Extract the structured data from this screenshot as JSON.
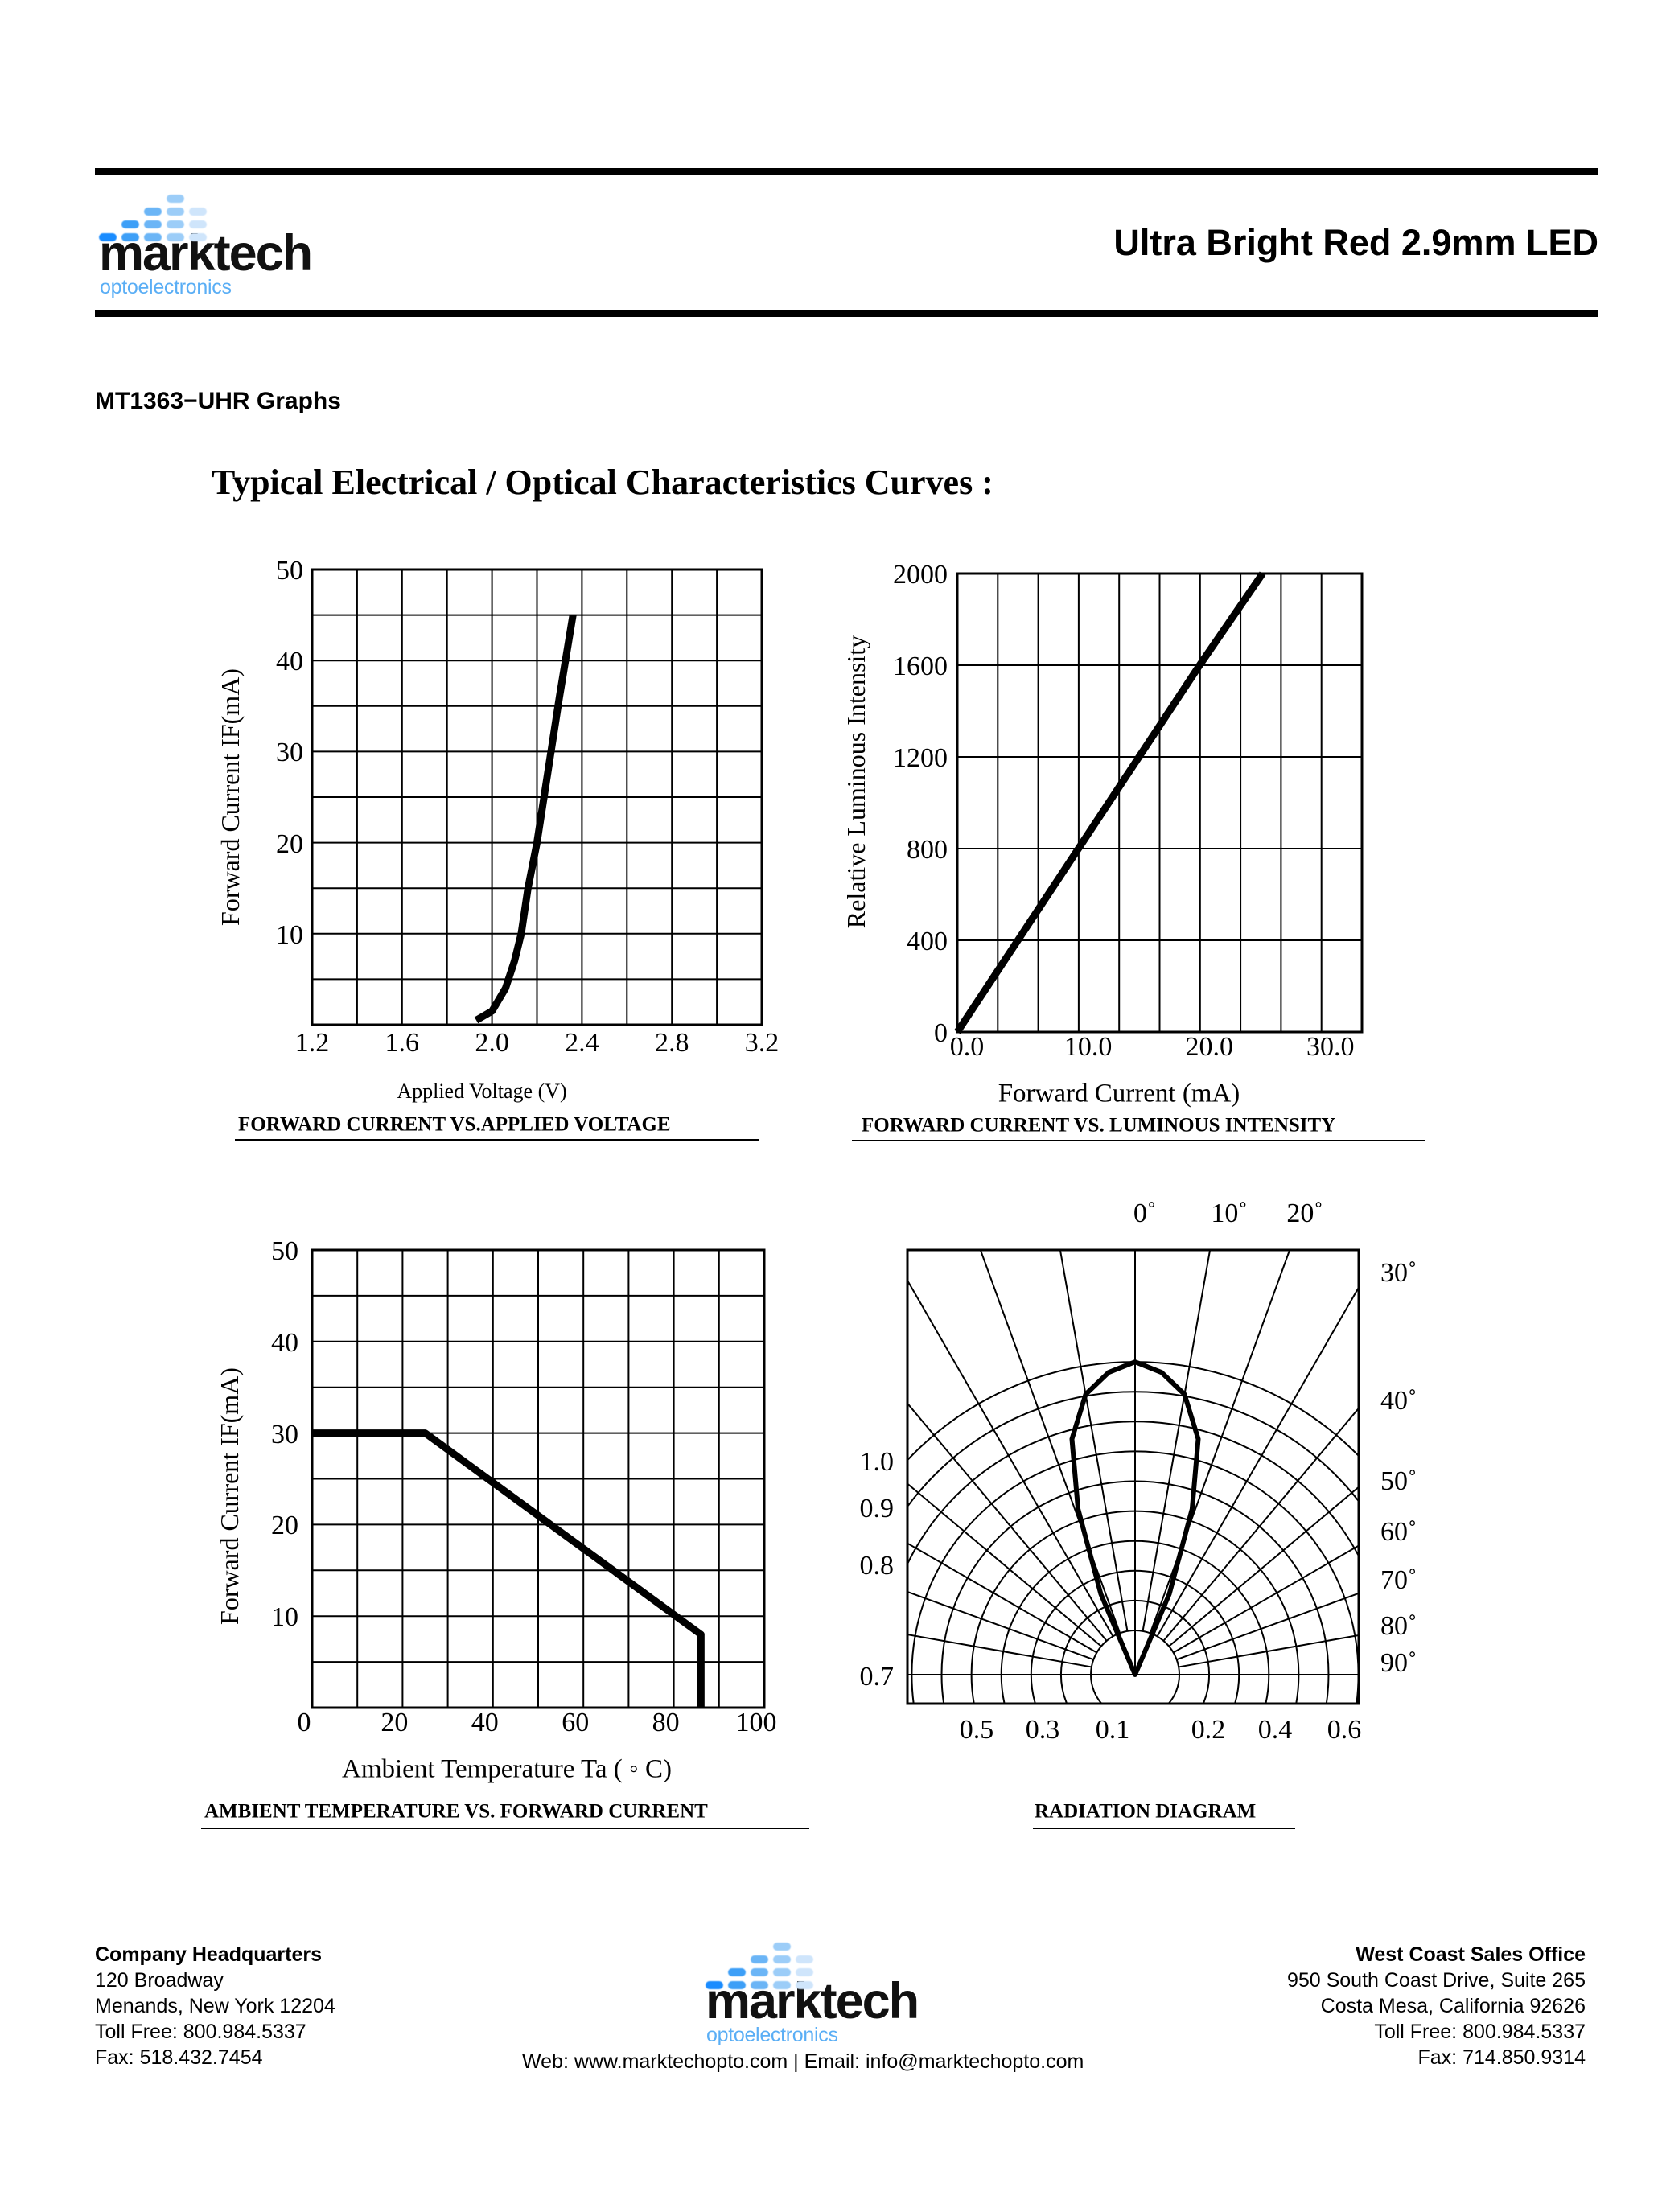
{
  "header": {
    "logo": {
      "word": "marktech",
      "sub": "optoelectronics",
      "dot_colors": [
        "#1a8cff",
        "#3d9ff7",
        "#6bb5f6",
        "#9ccdf8",
        "#cfe5fb"
      ]
    },
    "title": "Ultra Bright Red 2.9mm LED"
  },
  "section_title": "MT1363−UHR Graphs",
  "curves_title": "Typical Electrical / Optical Characteristics Curves :",
  "chart_data": [
    {
      "type": "line",
      "title": "FORWARD CURRENT VS.APPLIED VOLTAGE",
      "xlabel": "Applied Voltage  (V)",
      "ylabel": "Forward Current IF(mA)",
      "xlim": [
        1.2,
        3.2
      ],
      "ylim": [
        0,
        50
      ],
      "xticks": [
        "1.2",
        "1.6",
        "2.0",
        "2.4",
        "2.8",
        "3.2"
      ],
      "yticks": [
        "10",
        "20",
        "30",
        "40",
        "50"
      ],
      "grid": {
        "x_divisions": 10,
        "y_divisions": 10
      },
      "series": [
        {
          "x": [
            1.93,
            2.0,
            2.06,
            2.1,
            2.13,
            2.16,
            2.2,
            2.25,
            2.3,
            2.36
          ],
          "y": [
            0.5,
            1.5,
            4,
            7,
            10,
            15,
            20,
            28,
            36,
            45
          ]
        }
      ]
    },
    {
      "type": "line",
      "title": "FORWARD CURRENT VS. LUMINOUS INTENSITY",
      "xlabel": "Forward Current (mA)",
      "ylabel": "Relative Luminous Intensity",
      "xlim": [
        0,
        33.4
      ],
      "ylim": [
        0,
        2000
      ],
      "xticks": [
        "0.0",
        "10.0",
        "20.0",
        "30.0"
      ],
      "yticks": [
        "0",
        "400",
        "800",
        "1200",
        "1600",
        "2000"
      ],
      "grid": {
        "x_divisions": 10,
        "y_divisions": 5
      },
      "series": [
        {
          "x": [
            0,
            10,
            20,
            25.2
          ],
          "y": [
            0,
            800,
            1600,
            2000
          ]
        }
      ]
    },
    {
      "type": "line",
      "title": "AMBIENT TEMPERATURE  VS. FORWARD CURRENT",
      "xlabel": "Ambient  Temperature  Ta ( ◦ C)",
      "ylabel": "Forward Current IF(mA)",
      "xlim": [
        0,
        100
      ],
      "ylim": [
        0,
        50
      ],
      "xticks": [
        "0",
        "20",
        "40",
        "60",
        "80",
        "100"
      ],
      "yticks": [
        "10",
        "20",
        "30",
        "40",
        "50"
      ],
      "grid": {
        "x_divisions": 10,
        "y_divisions": 10
      },
      "series": [
        {
          "x": [
            0,
            25,
            86,
            86
          ],
          "y": [
            30,
            30,
            8,
            0
          ]
        }
      ]
    },
    {
      "type": "polar",
      "title": "RADIATION DIAGRAM",
      "top_angle_labels": [
        "0˚",
        "10˚",
        "20˚"
      ],
      "right_angle_labels": [
        "30˚",
        "40˚",
        "50˚",
        "60˚",
        "70˚",
        "80˚",
        "90˚"
      ],
      "left_labels": [
        "1.0",
        "0.9",
        "0.8",
        "0.7"
      ],
      "bottom_labels": [
        "0.5",
        "0.3",
        "0.1",
        "0.2",
        "0.4",
        "0.6"
      ],
      "radial_grid_step_deg": 10,
      "ring_count": 10,
      "series": [
        {
          "angle_deg": [
            0,
            5,
            10,
            15,
            19,
            23,
            26
          ],
          "relative_intensity": [
            1.0,
            0.97,
            0.91,
            0.78,
            0.56,
            0.28,
            0.0
          ],
          "symmetric": true
        }
      ]
    }
  ],
  "footer": {
    "hq": {
      "title": "Company Headquarters",
      "lines": [
        "120 Broadway",
        "Menands, New York 12204",
        "Toll Free: 800.984.5337",
        "Fax: 518.432.7454"
      ]
    },
    "west": {
      "title": "West Coast Sales Office",
      "lines": [
        "950 South Coast Drive, Suite 265",
        "Costa Mesa, California 92626",
        "Toll Free: 800.984.5337",
        "Fax: 714.850.9314"
      ]
    },
    "web": "Web: www.marktechopto.com | Email: info@marktechopto.com"
  }
}
